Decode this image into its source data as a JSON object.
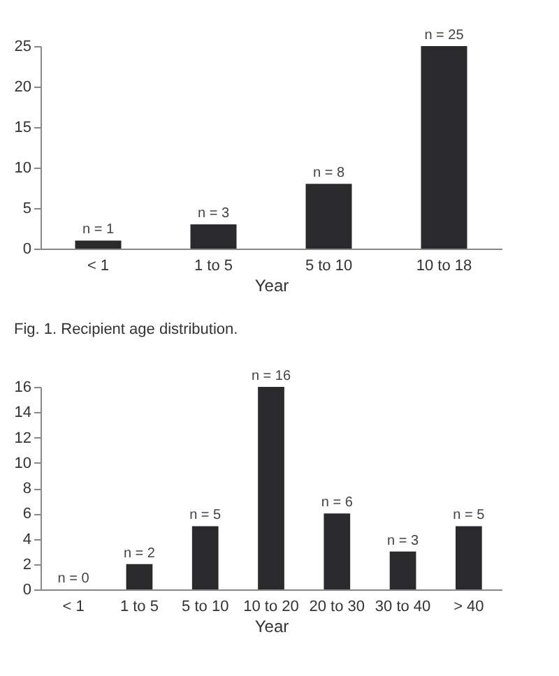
{
  "chart_data": [
    {
      "type": "bar",
      "categories": [
        "< 1",
        "1 to 5",
        "5 to 10",
        "10 to 18"
      ],
      "xlabel": "Year",
      "values": [
        1,
        3,
        8,
        25
      ],
      "value_labels": [
        "n = 1",
        "n = 3",
        "n = 8",
        "n = 25"
      ],
      "color": "#2a2a2c",
      "ylim": [
        0,
        25
      ],
      "yticks": [
        0,
        5,
        10,
        15,
        20,
        25
      ],
      "grid": false,
      "annotations": [
        "Fig. 1. Recipient age distribution."
      ]
    },
    {
      "type": "bar",
      "categories": [
        "< 1",
        "1 to 5",
        "5 to 10",
        "10 to 20",
        "20 to 30",
        "30 to 40",
        "> 40"
      ],
      "xlabel": "Year",
      "values": [
        0,
        2,
        5,
        16,
        6,
        3,
        5
      ],
      "value_labels": [
        "n = 0",
        "n = 2",
        "n = 5",
        "n = 16",
        "n = 6",
        "n = 3",
        "n = 5"
      ],
      "color": "#2a2a2c",
      "ylim": [
        0,
        16
      ],
      "yticks": [
        0,
        2,
        4,
        6,
        8,
        10,
        12,
        14,
        16
      ],
      "grid": false
    }
  ]
}
